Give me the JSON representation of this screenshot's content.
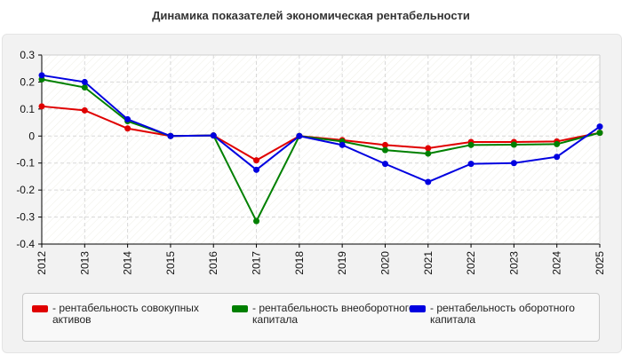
{
  "chart_data": {
    "type": "line",
    "title": "Динамика показателей экономическая рентабельности",
    "xlabel": "",
    "ylabel": "",
    "ylim": [
      -0.4,
      0.3
    ],
    "yticks": [
      "0.3",
      "0.2",
      "0.1",
      "0",
      "-0.1",
      "-0.2",
      "-0.3",
      "-0.4"
    ],
    "categories": [
      "2012",
      "2013",
      "2014",
      "2015",
      "2016",
      "2017",
      "2018",
      "2019",
      "2020",
      "2021",
      "2022",
      "2023",
      "2024",
      "2025"
    ],
    "grid": true,
    "legend_position": "bottom",
    "series": [
      {
        "name": "- рентабельность совокупных активов",
        "color": "#e00000",
        "values": [
          0.11,
          0.095,
          0.028,
          0.0,
          0.002,
          -0.09,
          0.0,
          -0.015,
          -0.033,
          -0.045,
          -0.022,
          -0.022,
          -0.02,
          0.012
        ]
      },
      {
        "name": "- рентабельность внеоборотного капитала",
        "color": "#008000",
        "values": [
          0.21,
          0.18,
          0.055,
          0.0,
          0.002,
          -0.315,
          0.0,
          -0.02,
          -0.052,
          -0.065,
          -0.033,
          -0.032,
          -0.03,
          0.012
        ]
      },
      {
        "name": "- рентабельность оборотного капитала",
        "color": "#0000e0",
        "values": [
          0.225,
          0.2,
          0.062,
          0.0,
          0.002,
          -0.125,
          0.0,
          -0.033,
          -0.103,
          -0.17,
          -0.103,
          -0.1,
          -0.077,
          0.035
        ]
      }
    ]
  }
}
